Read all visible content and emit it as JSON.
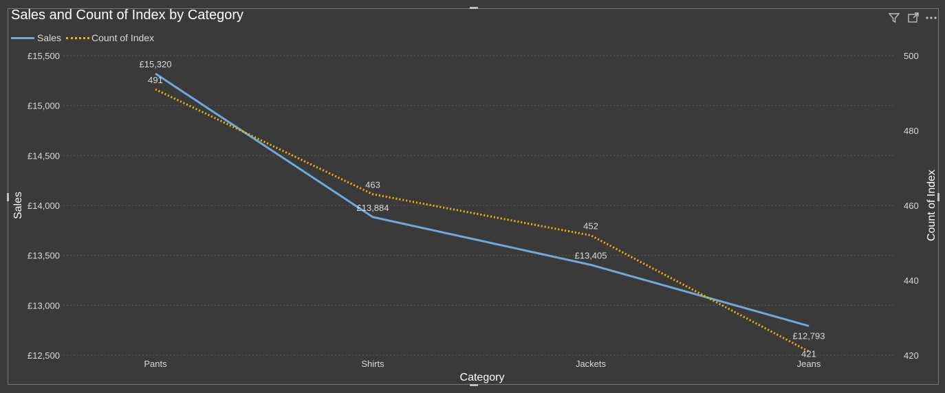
{
  "visual": {
    "title": "Sales and Count of Index by Category",
    "header_icons": [
      "filter-icon",
      "focus-mode-icon",
      "more-options-icon"
    ]
  },
  "legend": {
    "items": [
      {
        "label": "Sales",
        "style": "solid",
        "color": "#6fa8dc"
      },
      {
        "label": "Count of Index",
        "style": "dotted",
        "color": "#f2b705"
      }
    ]
  },
  "colors": {
    "background": "#3a3a3a",
    "sales": "#6fa8dc",
    "count": "#f2b705",
    "grid": "#5a5a5a",
    "axis_text": "#d9d9d9"
  },
  "chart_data": {
    "type": "line",
    "title": "Sales and Count of Index by Category",
    "xlabel": "Category",
    "categories": [
      "Pants",
      "Shirts",
      "Jackets",
      "Jeans"
    ],
    "y_left": {
      "label": "Sales",
      "ylim": [
        12500,
        15500
      ],
      "ticks": [
        12500,
        13000,
        13500,
        14000,
        14500,
        15000,
        15500
      ],
      "tick_labels": [
        "£12,500",
        "£13,000",
        "£13,500",
        "£14,000",
        "£14,500",
        "£15,000",
        "£15,500"
      ]
    },
    "y_right": {
      "label": "Count of Index",
      "ylim": [
        420,
        500
      ],
      "ticks": [
        420,
        440,
        460,
        480,
        500
      ],
      "tick_labels": [
        "420",
        "440",
        "460",
        "480",
        "500"
      ]
    },
    "series": [
      {
        "name": "Sales",
        "axis": "left",
        "values": [
          15320,
          13884,
          13405,
          12793
        ],
        "data_labels": [
          "£15,320",
          "£13,884",
          "£13,405",
          "£12,793"
        ]
      },
      {
        "name": "Count of Index",
        "axis": "right",
        "values": [
          491,
          463,
          452,
          421
        ],
        "data_labels": [
          "491",
          "463",
          "452",
          "421"
        ]
      }
    ],
    "grid": true,
    "legend_position": "top-left"
  }
}
